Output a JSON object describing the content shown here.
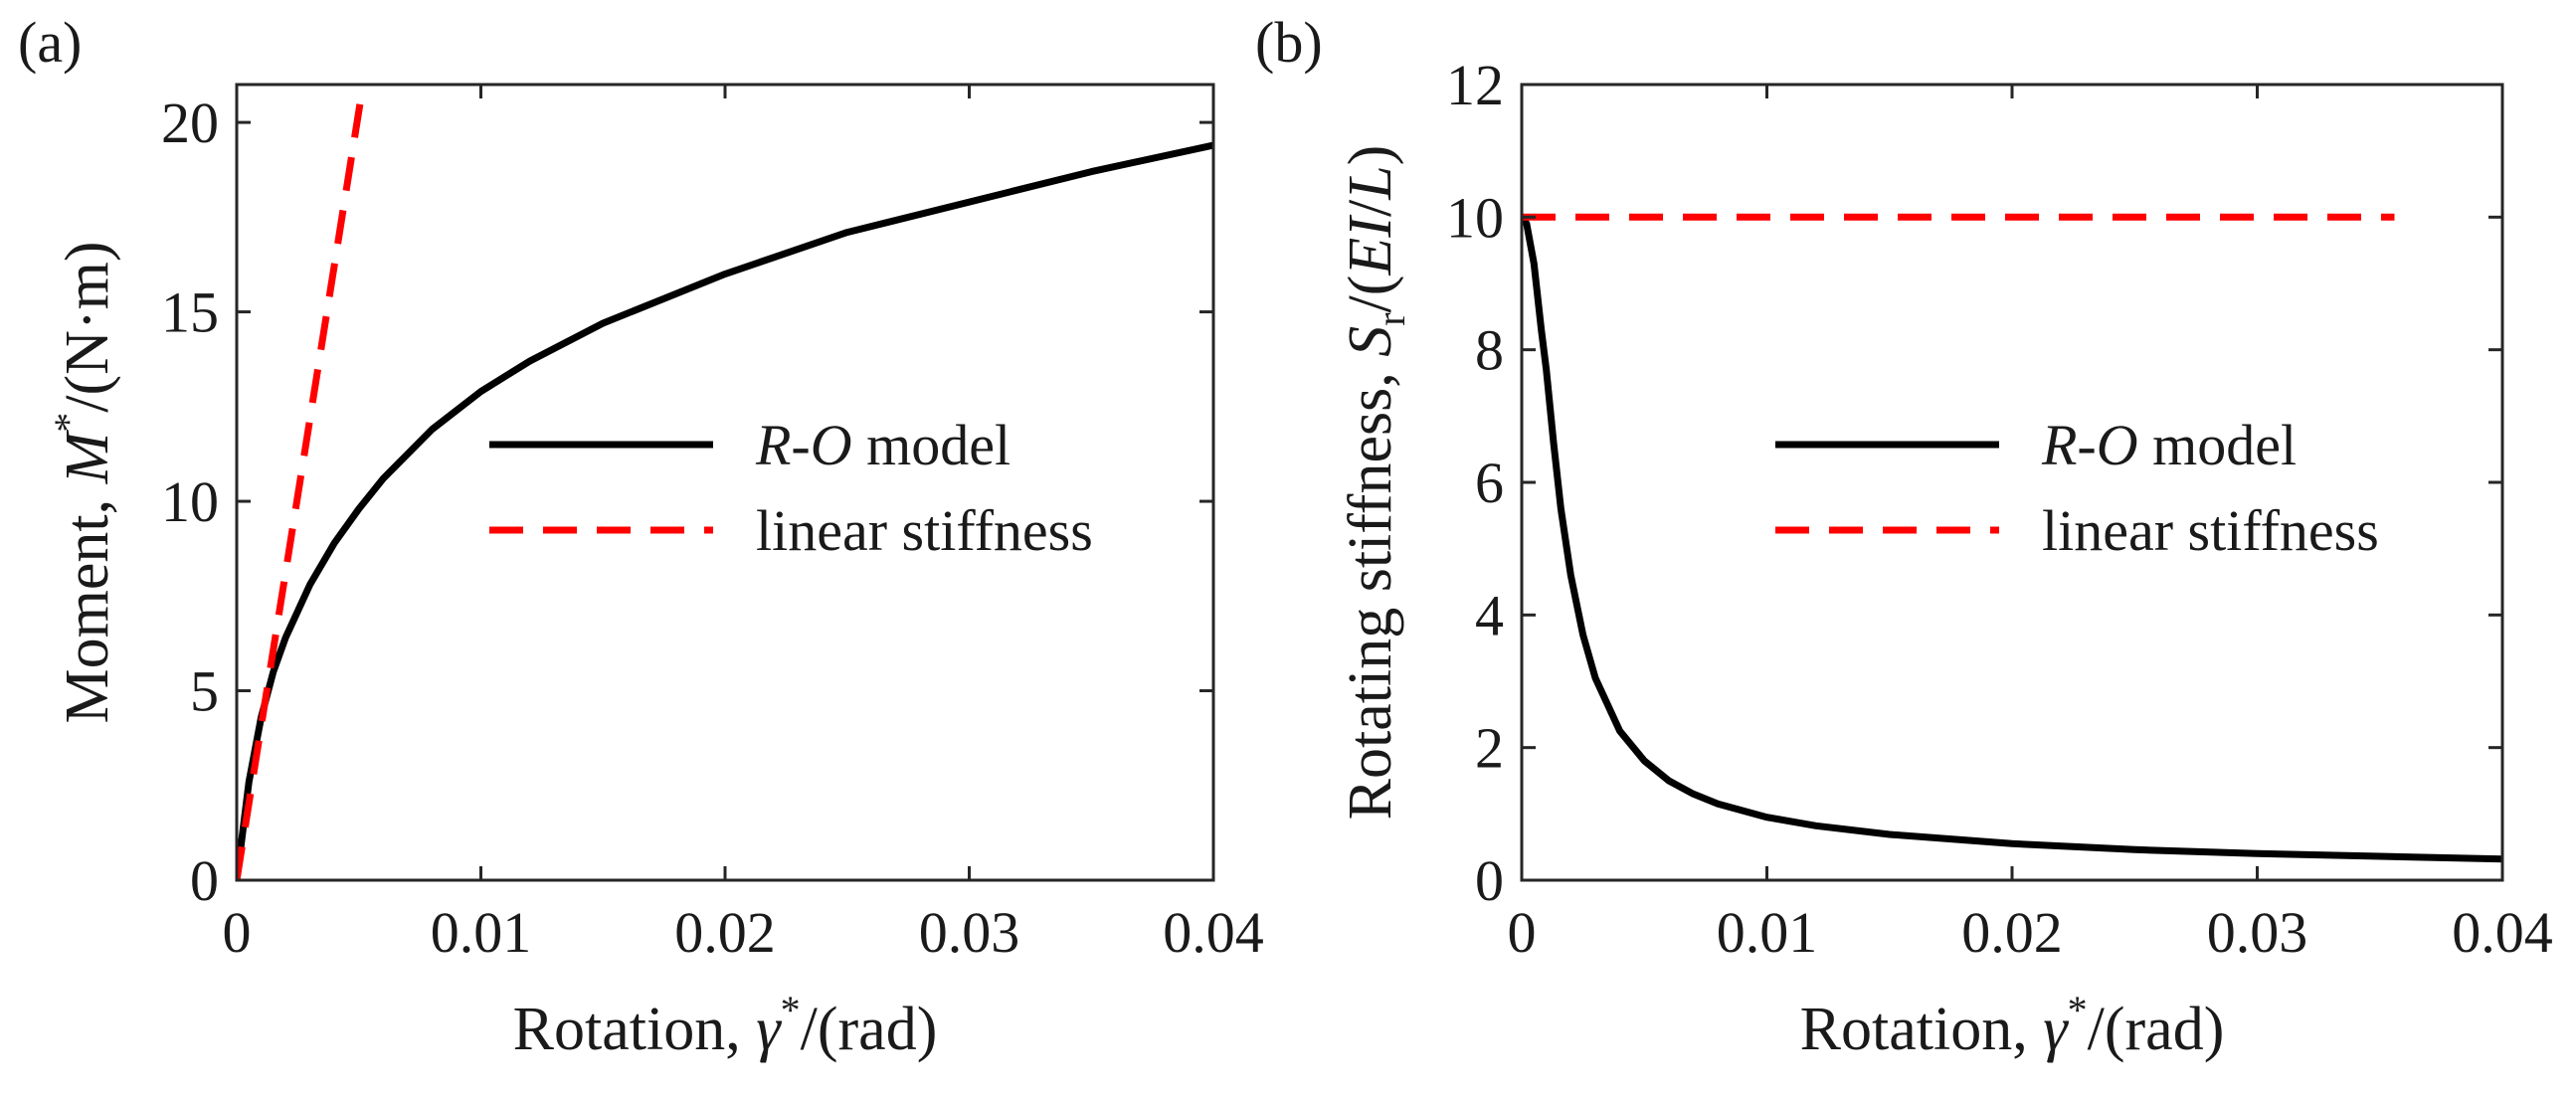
{
  "chart_data": [
    {
      "panel": "(a)",
      "type": "line",
      "xlim": [
        0,
        0.04
      ],
      "ylim": [
        0,
        21
      ],
      "xticks": [
        0,
        0.01,
        0.02,
        0.03,
        0.04
      ],
      "xtick_labels": [
        "0",
        "0.01",
        "0.02",
        "0.03",
        "0.04"
      ],
      "yticks": [
        0,
        5,
        10,
        15,
        20
      ],
      "ytick_labels": [
        "0",
        "5",
        "10",
        "15",
        "20"
      ],
      "xlabel": {
        "pre": "Rotation, ",
        "sym": "γ",
        "sup": "*",
        "post": "/(rad)"
      },
      "ylabel": {
        "pre": "Moment, ",
        "sym": "M",
        "sup": "*",
        "post": "/(N·m)"
      },
      "grid": false,
      "legend_placement": "center-right",
      "series": [
        {
          "name": "R-O model",
          "name_italic": "R-O",
          "name_rest": " model",
          "color": "#000000",
          "style": "solid",
          "x": [
            0,
            0.0005,
            0.001,
            0.0015,
            0.002,
            0.003,
            0.004,
            0.005,
            0.006,
            0.008,
            0.01,
            0.012,
            0.015,
            0.02,
            0.025,
            0.03,
            0.035,
            0.04
          ],
          "y": [
            0,
            2.6,
            4.3,
            5.5,
            6.4,
            7.8,
            8.9,
            9.8,
            10.6,
            11.9,
            12.9,
            13.7,
            14.7,
            16.0,
            17.1,
            17.9,
            18.7,
            19.4
          ]
        },
        {
          "name": "linear stiffness",
          "color": "#ff0000",
          "style": "dashed",
          "x": [
            0,
            0.00505
          ],
          "y": [
            0,
            20.5
          ]
        }
      ]
    },
    {
      "panel": "(b)",
      "type": "line",
      "xlim": [
        0,
        0.04
      ],
      "ylim": [
        0,
        12
      ],
      "xticks": [
        0,
        0.01,
        0.02,
        0.03,
        0.04
      ],
      "xtick_labels": [
        "0",
        "0.01",
        "0.02",
        "0.03",
        "0.04"
      ],
      "yticks": [
        0,
        2,
        4,
        6,
        8,
        10,
        12
      ],
      "ytick_labels": [
        "0",
        "2",
        "4",
        "6",
        "8",
        "10",
        "12"
      ],
      "xlabel": {
        "pre": "Rotation, ",
        "sym": "γ",
        "sup": "*",
        "post": "/(rad)"
      },
      "ylabel": {
        "pre": "Rotating stiffness, ",
        "sym": "S",
        "sub": "r",
        "post": "/(",
        "sym2": "EI",
        "post2": "/",
        "sym3": "L",
        "post3": ")"
      },
      "grid": false,
      "legend_placement": "center-right",
      "series": [
        {
          "name": "R-O model",
          "name_italic": "R-O",
          "name_rest": " model",
          "color": "#000000",
          "style": "solid",
          "x": [
            0,
            0.0002,
            0.0005,
            0.0008,
            0.001,
            0.0013,
            0.0016,
            0.002,
            0.0025,
            0.003,
            0.004,
            0.005,
            0.006,
            0.007,
            0.008,
            0.01,
            0.012,
            0.015,
            0.02,
            0.025,
            0.03,
            0.035,
            0.04
          ],
          "y": [
            10,
            9.9,
            9.3,
            8.3,
            7.7,
            6.6,
            5.6,
            4.6,
            3.7,
            3.05,
            2.25,
            1.8,
            1.5,
            1.3,
            1.15,
            0.95,
            0.82,
            0.69,
            0.55,
            0.46,
            0.4,
            0.36,
            0.32
          ]
        },
        {
          "name": "linear stiffness",
          "color": "#ff0000",
          "style": "dashed",
          "x": [
            0,
            0.0356
          ],
          "y": [
            10,
            10
          ]
        }
      ]
    }
  ]
}
